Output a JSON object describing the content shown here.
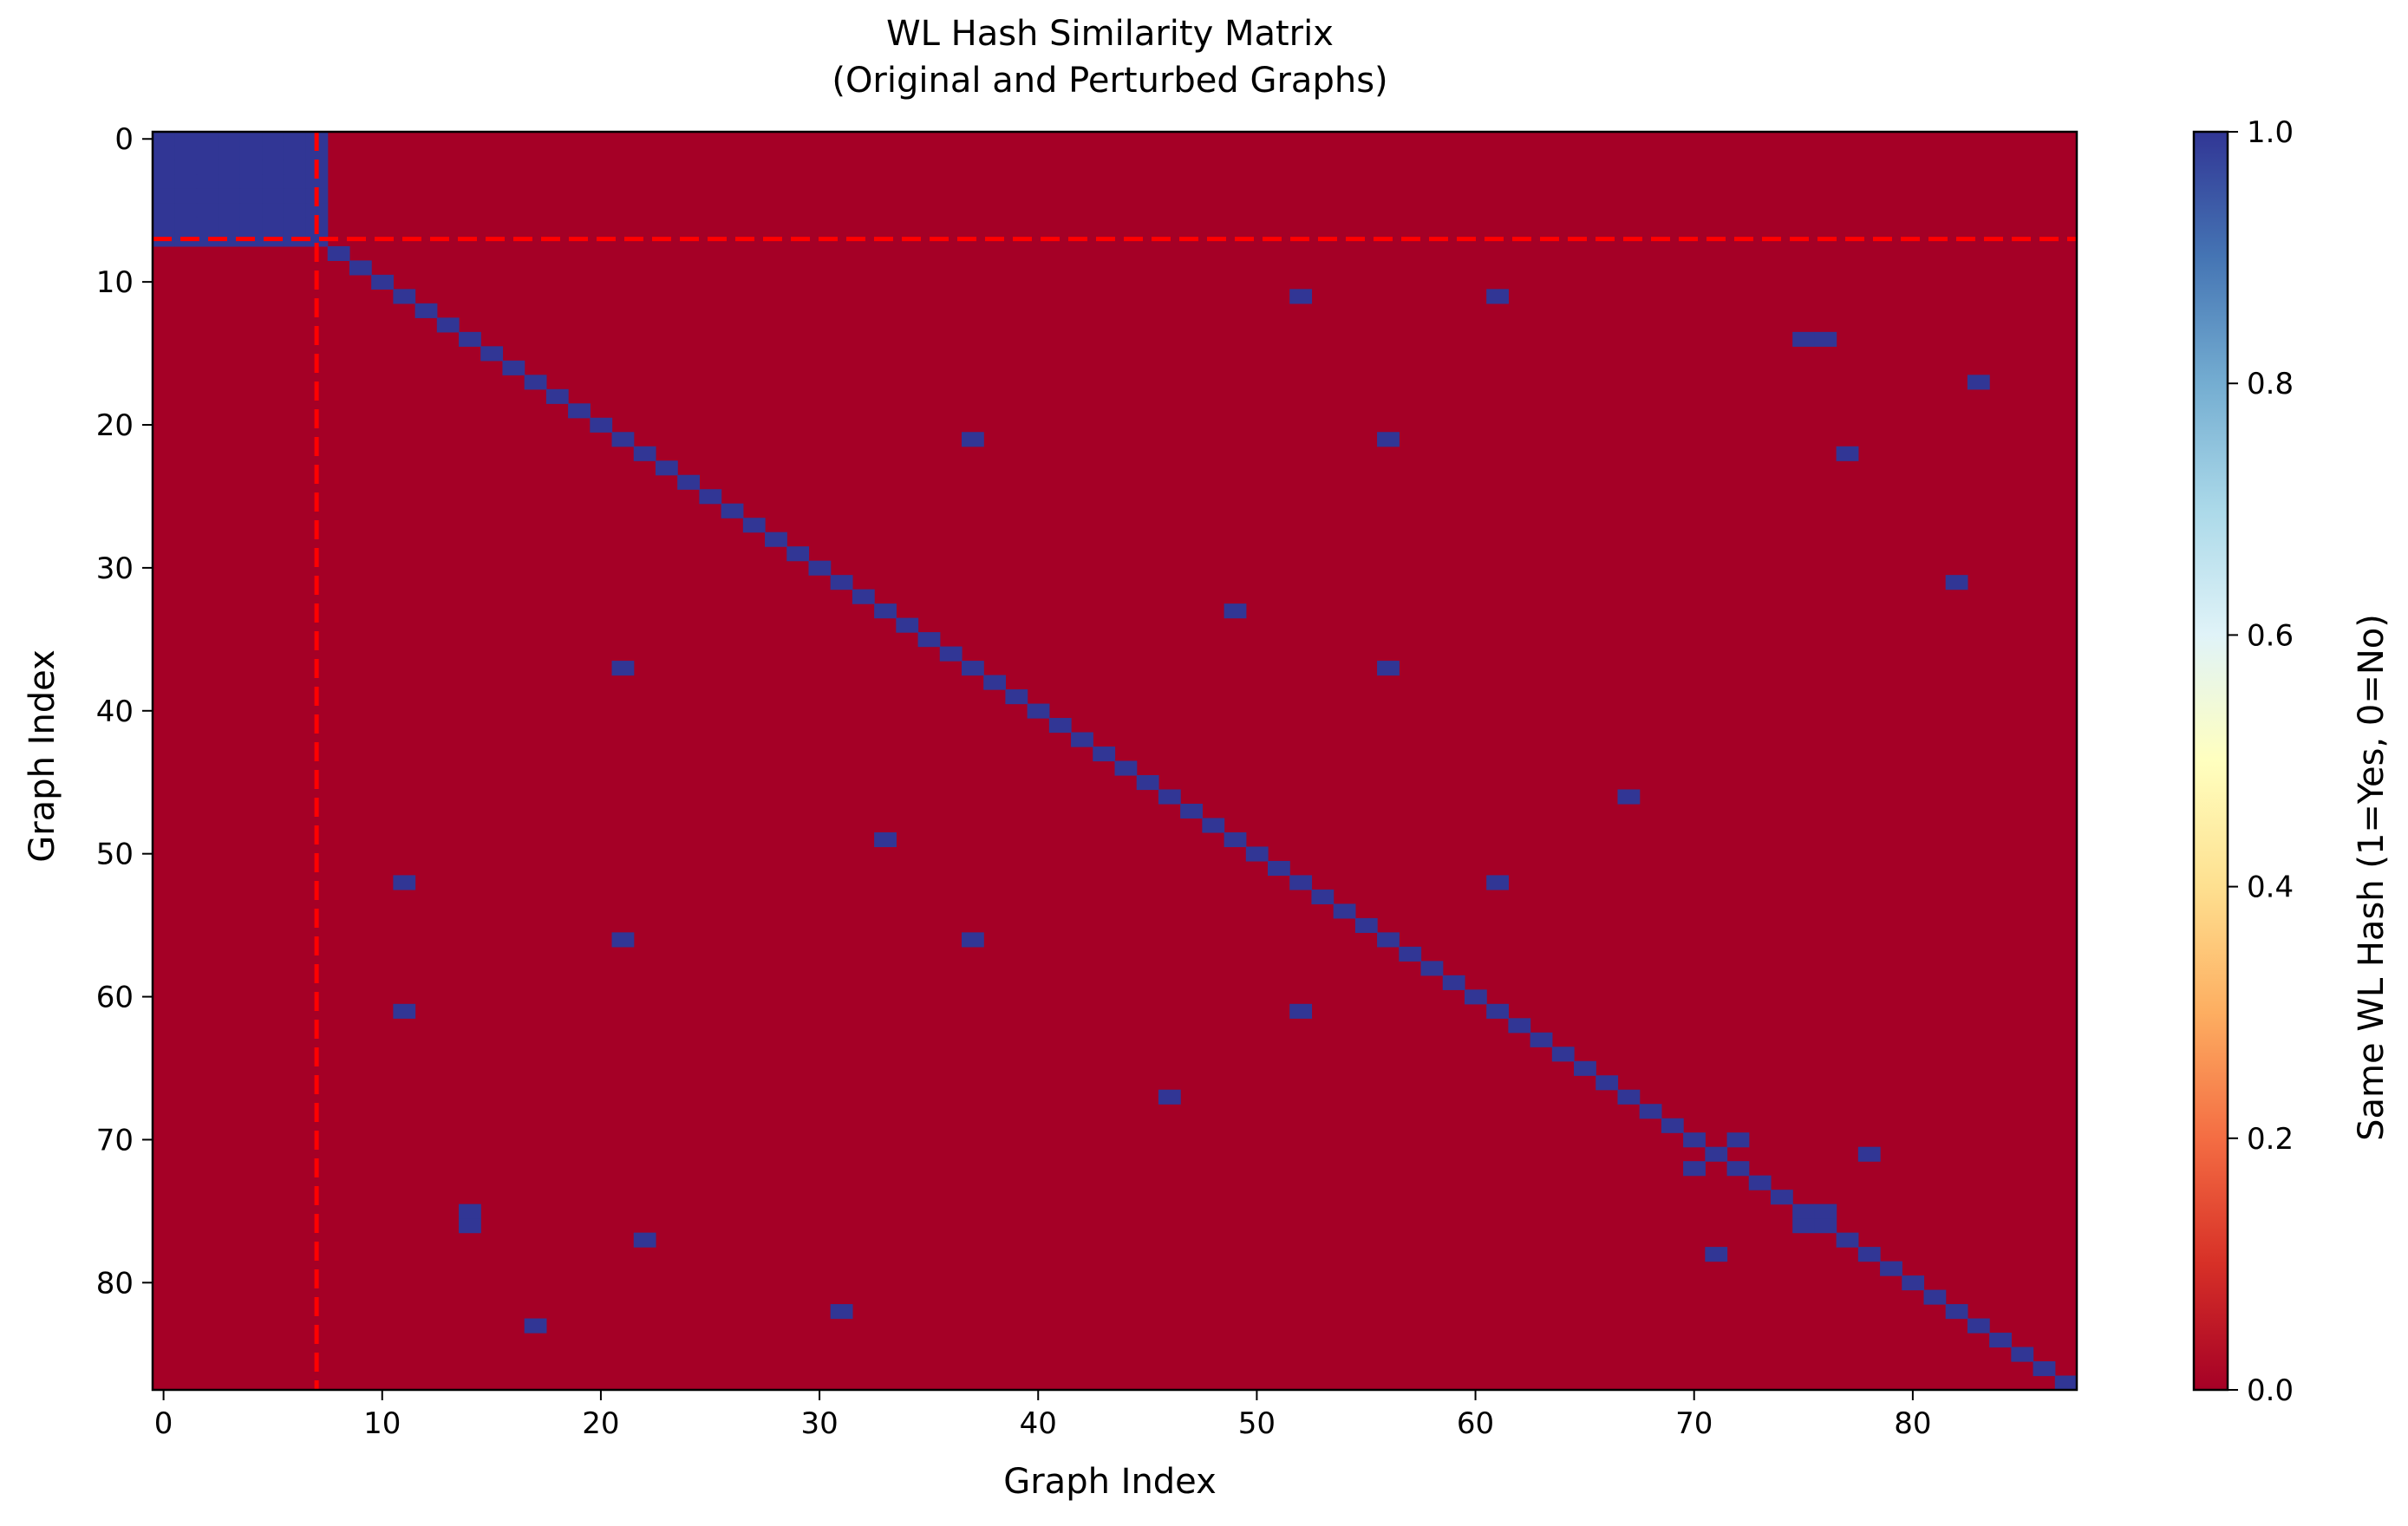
{
  "chart_data": {
    "type": "heatmap",
    "title": "WL Hash Similarity Matrix",
    "subtitle": "(Original and Perturbed Graphs)",
    "xlabel": "Graph Index",
    "ylabel": "Graph Index",
    "n": 88,
    "x_ticks": [
      0,
      10,
      20,
      30,
      40,
      50,
      60,
      70,
      80
    ],
    "y_ticks": [
      0,
      10,
      20,
      30,
      40,
      50,
      60,
      70,
      80
    ],
    "colorbar": {
      "label": "Same WL Hash (1=Yes, 0=No)",
      "ticks": [
        "0.0",
        "0.2",
        "0.4",
        "0.6",
        "0.8",
        "1.0"
      ],
      "range": [
        0,
        1
      ],
      "colormap": "RdYlBu",
      "stops": [
        "#a50026",
        "#d73027",
        "#f46d43",
        "#fdae61",
        "#fee090",
        "#ffffbf",
        "#e0f3f8",
        "#abd9e9",
        "#74add1",
        "#4575b4",
        "#313695"
      ]
    },
    "colors": {
      "zero": "#a50026",
      "one": "#313695",
      "separator": "#ff0000"
    },
    "original_block": [
      0,
      7
    ],
    "separator_at": 7.5,
    "diagonal": "all ones",
    "off_diagonal_ones": [
      [
        11,
        52
      ],
      [
        11,
        61
      ],
      [
        14,
        75
      ],
      [
        14,
        76
      ],
      [
        17,
        83
      ],
      [
        21,
        37
      ],
      [
        21,
        56
      ],
      [
        22,
        77
      ],
      [
        31,
        82
      ],
      [
        33,
        49
      ],
      [
        37,
        56
      ],
      [
        46,
        67
      ],
      [
        52,
        61
      ],
      [
        70,
        72
      ],
      [
        71,
        78
      ],
      [
        75,
        76
      ]
    ]
  }
}
